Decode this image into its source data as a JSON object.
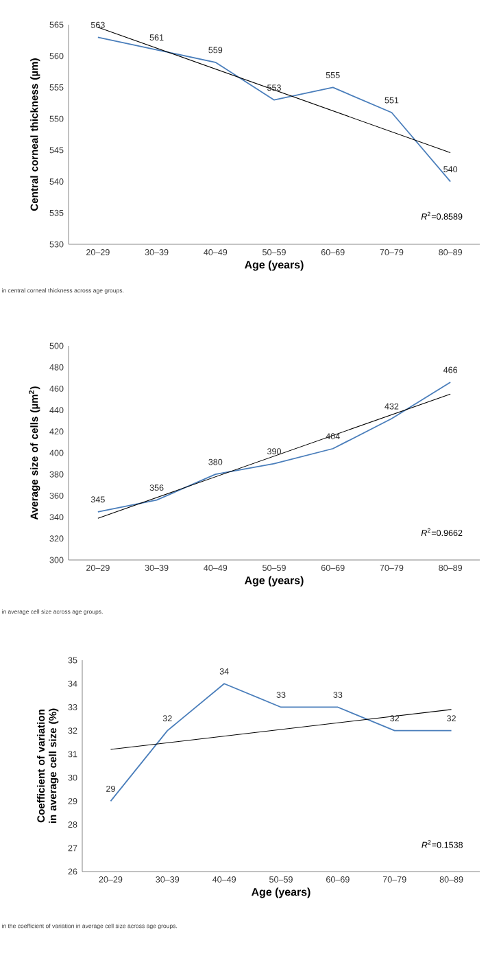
{
  "chart_data": [
    {
      "type": "line",
      "categories": [
        "20–29",
        "30–39",
        "40–49",
        "50–59",
        "60–69",
        "70–79",
        "80–89"
      ],
      "xlabel": "Age (years)",
      "ylabel": "Central corneal thickness (µm)",
      "ylim": [
        530,
        565
      ],
      "yticks": [
        530,
        535,
        540,
        545,
        550,
        555,
        560,
        565
      ],
      "series": [
        {
          "color": "#4a7ebb",
          "values": [
            563,
            561,
            559,
            553,
            555,
            551,
            540
          ],
          "value_labels": [
            "563",
            "561",
            "559",
            "553",
            "555",
            "551",
            "540"
          ]
        },
        {
          "type": "line",
          "color": "#000000",
          "x": [
            "20–29",
            "80–89"
          ],
          "values": [
            564.6,
            544.6
          ]
        }
      ],
      "annotations": [
        "*R*$^{2}$=0.8589",
        "in central corneal thickness across age groups."
      ]
    },
    {
      "type": "line",
      "categories": [
        "20–29",
        "30–39",
        "40–49",
        "50–59",
        "60–69",
        "70–79",
        "80–89"
      ],
      "xlabel": "Age (years)",
      "ylabel": "Average size of cells (µm$^{2}$)",
      "ylim": [
        300,
        500
      ],
      "yticks": [
        300,
        320,
        340,
        360,
        380,
        400,
        420,
        440,
        460,
        480,
        500
      ],
      "series": [
        {
          "color": "#4a7ebb",
          "values": [
            345,
            356,
            380,
            390,
            404,
            432,
            466
          ],
          "value_labels": [
            "345",
            "356",
            "380",
            "390",
            "404",
            "432",
            "466"
          ]
        },
        {
          "type": "line",
          "color": "#000000",
          "x": [
            "20–29",
            "80–89"
          ],
          "values": [
            339,
            455
          ]
        }
      ],
      "annotations": [
        "*R*$^{2}$=0.9662",
        "in average cell size across age groups."
      ]
    },
    {
      "type": "line",
      "categories": [
        "20–29",
        "30–39",
        "40–49",
        "50–59",
        "60–69",
        "70–79",
        "80–89"
      ],
      "xlabel": "Age (years)",
      "ylabel": "Coefficient of variation in average cell size (%)",
      "ylim": [
        26,
        35
      ],
      "yticks": [
        26,
        27,
        28,
        29,
        30,
        31,
        32,
        33,
        34,
        35
      ],
      "series": [
        {
          "color": "#4a7ebb",
          "values": [
            29,
            32,
            34,
            33,
            33,
            32,
            32
          ],
          "value_labels": [
            "29",
            "32",
            "34",
            "33",
            "33",
            "32",
            "32"
          ]
        },
        {
          "type": "line",
          "color": "#000000",
          "x": [
            "20–29",
            "80–89"
          ],
          "values": [
            31.2,
            32.9
          ]
        }
      ],
      "annotations": [
        "*R*$^{2}$=0.1538",
        "in the coefficient of variation in average cell size across age groups."
      ]
    }
  ]
}
